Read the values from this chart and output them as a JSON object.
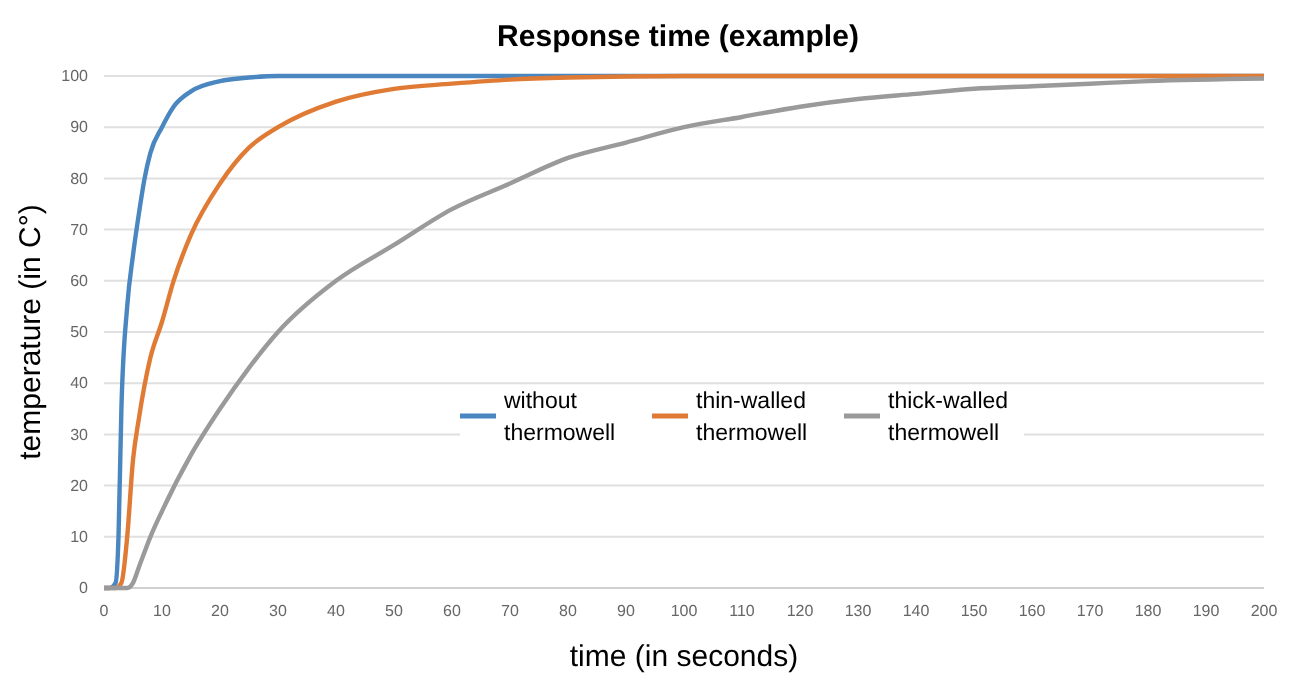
{
  "chart_data": {
    "type": "line",
    "title": "Response time (example)",
    "xlabel": "time (in seconds)",
    "ylabel": "temperature (in C°)",
    "xlim": [
      0,
      200
    ],
    "xticks": [
      0,
      10,
      20,
      30,
      40,
      50,
      60,
      70,
      80,
      90,
      100,
      110,
      120,
      130,
      140,
      150,
      160,
      170,
      180,
      190,
      200
    ],
    "ylim": [
      0,
      100
    ],
    "yticks": [
      0,
      10,
      20,
      30,
      40,
      50,
      60,
      70,
      80,
      90,
      100
    ],
    "grid": "y",
    "legend": "center",
    "marker": "none",
    "line_style": "solid",
    "series": [
      {
        "name": "without thermowell",
        "color": "#4a86c0",
        "x": [
          0,
          1,
          2,
          2.5,
          3,
          4,
          5,
          6,
          7,
          8,
          10,
          12,
          15,
          20,
          25,
          30,
          200
        ],
        "values": [
          0,
          0,
          1,
          10,
          35,
          55,
          65,
          73,
          80,
          85,
          90,
          94,
          97,
          99,
          99.7,
          100,
          100
        ]
      },
      {
        "name": "thin-walled thermowell",
        "color": "#e07b35",
        "x": [
          0,
          2,
          3,
          4,
          5,
          6,
          8,
          10,
          12,
          15,
          20,
          25,
          30,
          40,
          50,
          60,
          70,
          80,
          100,
          200
        ],
        "values": [
          0,
          0,
          1,
          10,
          25,
          33,
          45,
          52,
          60,
          69,
          79,
          86,
          90,
          95,
          97.5,
          98.5,
          99.3,
          99.7,
          100,
          100
        ]
      },
      {
        "name": "thick-walled thermowell",
        "color": "#9a9a9a",
        "x": [
          0,
          4,
          5,
          6,
          8,
          10,
          15,
          20,
          25,
          30,
          40,
          50,
          60,
          70,
          80,
          90,
          100,
          110,
          120,
          130,
          140,
          150,
          160,
          170,
          180,
          200
        ],
        "values": [
          0,
          0,
          1,
          4,
          10,
          15,
          26,
          35,
          43,
          50,
          60,
          67,
          74,
          79,
          84,
          87,
          90,
          92,
          94,
          95.5,
          96.5,
          97.5,
          98,
          98.5,
          99,
          99.5
        ]
      }
    ]
  }
}
